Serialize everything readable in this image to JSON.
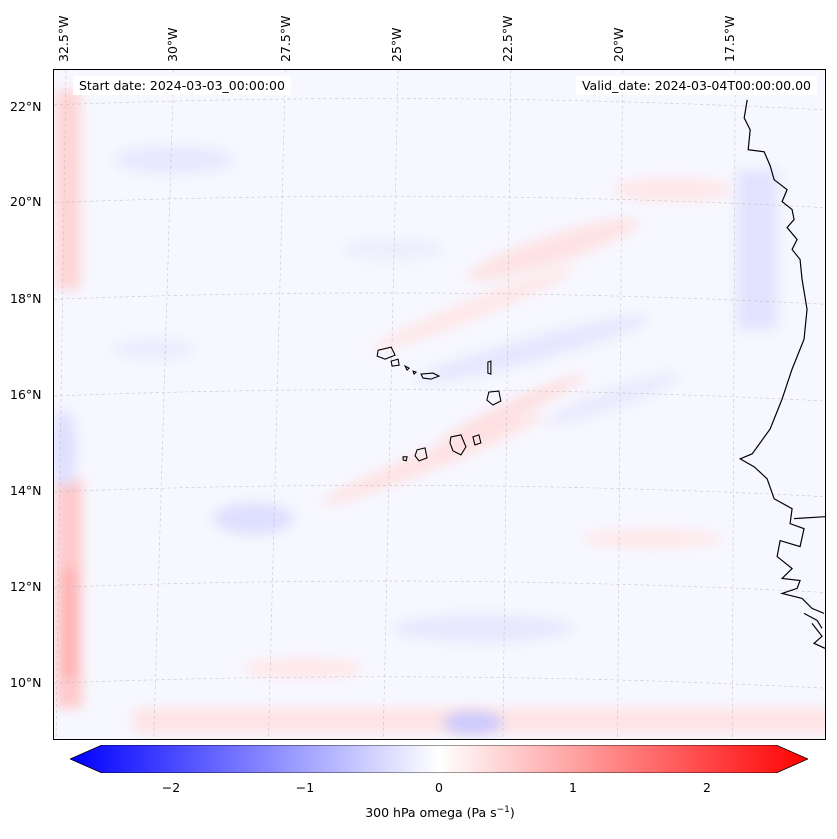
{
  "header": {
    "start_label": "Start date: 2024-03-03_00:00:00",
    "valid_label": "Valid_date: 2024-03-04T00:00:00.00"
  },
  "axes": {
    "lat_ticks": [
      "22°N",
      "20°N",
      "18°N",
      "16°N",
      "14°N",
      "12°N",
      "10°N"
    ],
    "lon_ticks": [
      "32.5°W",
      "30°W",
      "27.5°W",
      "25°W",
      "22.5°W",
      "20°W",
      "17.5°W"
    ]
  },
  "colorbar": {
    "ticks": [
      "−2",
      "−1",
      "0",
      "1",
      "2"
    ],
    "label_text": "300 hPa omega (Pa s",
    "label_exp": "−1",
    "label_close": ")",
    "range": [
      -2.6,
      2.6
    ],
    "colormap": "bwr",
    "extend": "both",
    "color_low": "#0000ff",
    "color_mid": "#ffffff",
    "color_high": "#ff0000"
  },
  "map": {
    "projection": "lambert-conformal",
    "lat_range": [
      8.8,
      22.8
    ],
    "lon_range": [
      -33.0,
      -16.0
    ],
    "features": [
      "coastline-west-africa",
      "cape-verde-islands"
    ],
    "gridlines": "dashed",
    "field": "omega-300hPa"
  }
}
